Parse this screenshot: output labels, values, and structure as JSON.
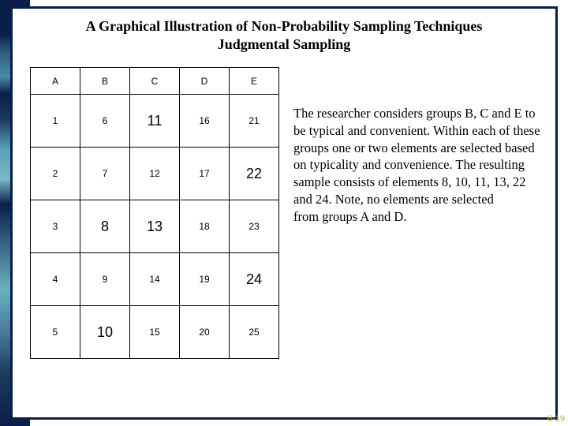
{
  "title": {
    "line1": "A Graphical Illustration of Non-Probability Sampling Techniques",
    "line2": "Judgmental Sampling"
  },
  "table": {
    "columns": [
      "A",
      "B",
      "C",
      "D",
      "E"
    ],
    "rows": [
      [
        {
          "v": "1",
          "sel": false
        },
        {
          "v": "6",
          "sel": false
        },
        {
          "v": "11",
          "sel": true
        },
        {
          "v": "16",
          "sel": false
        },
        {
          "v": "21",
          "sel": false
        }
      ],
      [
        {
          "v": "2",
          "sel": false
        },
        {
          "v": "7",
          "sel": false
        },
        {
          "v": "12",
          "sel": false
        },
        {
          "v": "17",
          "sel": false
        },
        {
          "v": "22",
          "sel": true
        }
      ],
      [
        {
          "v": "3",
          "sel": false
        },
        {
          "v": "8",
          "sel": true
        },
        {
          "v": "13",
          "sel": true
        },
        {
          "v": "18",
          "sel": false
        },
        {
          "v": "23",
          "sel": false
        }
      ],
      [
        {
          "v": "4",
          "sel": false
        },
        {
          "v": "9",
          "sel": false
        },
        {
          "v": "14",
          "sel": false
        },
        {
          "v": "19",
          "sel": false
        },
        {
          "v": "24",
          "sel": true
        }
      ],
      [
        {
          "v": "5",
          "sel": false
        },
        {
          "v": "10",
          "sel": true
        },
        {
          "v": "15",
          "sel": false
        },
        {
          "v": "20",
          "sel": false
        },
        {
          "v": "25",
          "sel": false
        }
      ]
    ],
    "cell_font_size_normal": 12,
    "cell_font_size_selected": 18,
    "border_color": "#000000",
    "background_color": "#ffffff"
  },
  "body_text": "The researcher considers groups B, C and E to be typical and convenient. Within each of these groups one or two elements are selected based on typicality and convenience. The resulting sample consists of elements 8, 10, 11, 13, 22 and 24. Note, no elements are selected\nfrom groups A and D.",
  "page_number": "6-19",
  "colors": {
    "frame_border": "#0a1e4a",
    "title_text": "#000000",
    "body_text": "#000000",
    "page_num": "#c8a838"
  }
}
